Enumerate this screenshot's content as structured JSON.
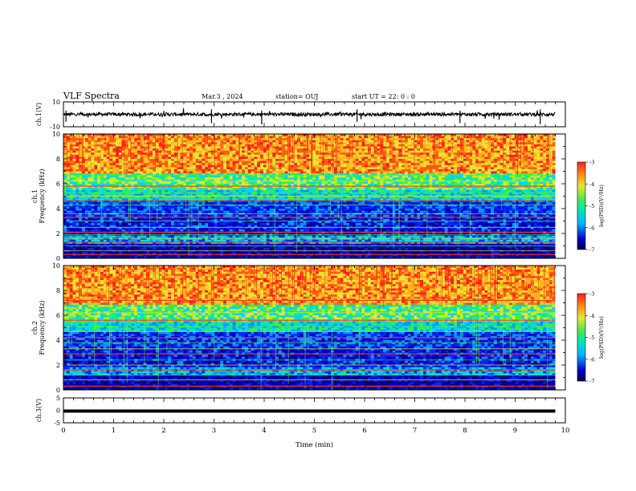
{
  "header": {
    "title": "VLF Spectra",
    "date": "Mar.3 , 2024",
    "station": "station= OUJ",
    "start": "start UT = 22: 0 : 0"
  },
  "chart_data": [
    {
      "type": "line",
      "panel": "ch1-waveform",
      "ylabel": "ch.1(V)",
      "ylim": [
        -10,
        10
      ],
      "yticks": [
        "10",
        "-10"
      ],
      "xlim": [
        0,
        10
      ],
      "baseline": 0,
      "amplitude_typical": 2
    },
    {
      "type": "heatmap",
      "panel": "ch1-spectrogram",
      "ylabel": "ch.1 Frequency (kHz)",
      "ylim": [
        0,
        10
      ],
      "yticks": [
        "0",
        "2",
        "4",
        "6",
        "8",
        "10"
      ],
      "xlim": [
        0,
        9.8
      ],
      "colorbar": {
        "label": "log(PSD)(V²/Hz)",
        "range": [
          -7,
          -3
        ],
        "ticks": [
          "-3",
          "-4",
          "-5",
          "-6",
          "-7"
        ]
      },
      "lines_khz": [
        0.3,
        0.6,
        1.0,
        1.3,
        1.6,
        1.9,
        2.1,
        2.5,
        3.0,
        3.3,
        3.6,
        4.3,
        4.6,
        5.0,
        5.3,
        5.8,
        6.2,
        6.7
      ]
    },
    {
      "type": "heatmap",
      "panel": "ch2-spectrogram",
      "ylabel": "ch.2 Frequency (kHz)",
      "ylim": [
        0,
        10
      ],
      "yticks": [
        "0",
        "2",
        "4",
        "6",
        "8",
        "10"
      ],
      "xlim": [
        0,
        9.8
      ],
      "colorbar": {
        "label": "log(PSD)(V²/Hz)",
        "range": [
          -7,
          -3
        ],
        "ticks": [
          "-3",
          "-4",
          "-5",
          "-6",
          "-7"
        ]
      },
      "lines_khz": [
        0.3,
        0.8,
        1.2,
        1.6,
        2.0,
        2.4,
        2.9,
        3.3,
        3.8,
        4.2,
        4.7,
        5.1,
        5.6,
        6.2,
        6.9,
        7.2
      ]
    },
    {
      "type": "line",
      "panel": "ch3-waveform",
      "ylabel": "ch.3(V)",
      "ylim": [
        -5,
        5
      ],
      "yticks": [
        "5",
        "0",
        "-5"
      ],
      "xlim": [
        0,
        9.8
      ],
      "constant_value": -0.3
    }
  ],
  "xaxis": {
    "label": "Time (min)",
    "range": [
      0,
      10
    ],
    "ticks": [
      "0",
      "1",
      "2",
      "3",
      "4",
      "5",
      "6",
      "7",
      "8",
      "9",
      "10"
    ]
  }
}
